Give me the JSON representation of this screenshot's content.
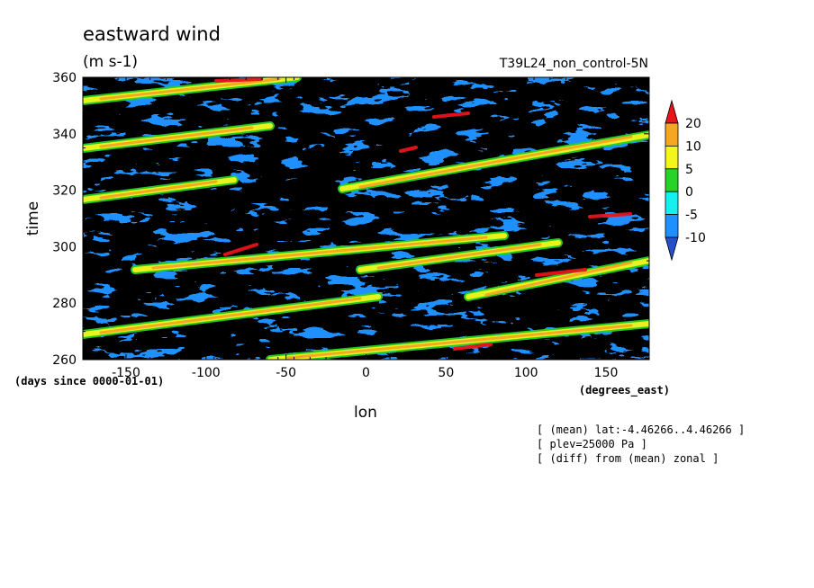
{
  "chart_data": {
    "type": "heatmap",
    "title": "eastward wind",
    "units": "(m s-1)",
    "run_name": "T39L24_non_control-5N",
    "xlabel": "lon",
    "x_units": "(degrees_east)",
    "ylabel": "time",
    "y_units": "(days since 0000-01-01)",
    "xlim": [
      -177,
      177
    ],
    "ylim": [
      260,
      360
    ],
    "x_ticks": [
      "-150",
      "-100",
      "-50",
      "0",
      "50",
      "100",
      "150"
    ],
    "x_tick_values": [
      -150,
      -100,
      -50,
      0,
      50,
      100,
      150
    ],
    "y_ticks": [
      "260",
      "280",
      "300",
      "320",
      "340",
      "360"
    ],
    "y_tick_values": [
      260,
      280,
      300,
      320,
      340,
      360
    ],
    "colorbar": {
      "levels": [
        "20",
        "10",
        "5",
        "0",
        "-5",
        "-10"
      ],
      "level_values": [
        20,
        10,
        5,
        0,
        -5,
        -10
      ],
      "colors": [
        "#e8141c",
        "#f5a623",
        "#f5f51e",
        "#28d228",
        "#14f0f0",
        "#1e90ff",
        "#2550c8"
      ]
    },
    "notes": [
      "[ (mean) lat:-4.46266..4.46266 ]",
      "[ plev=25000 Pa ]",
      "[ (diff) from (mean) zonal ]"
    ]
  }
}
